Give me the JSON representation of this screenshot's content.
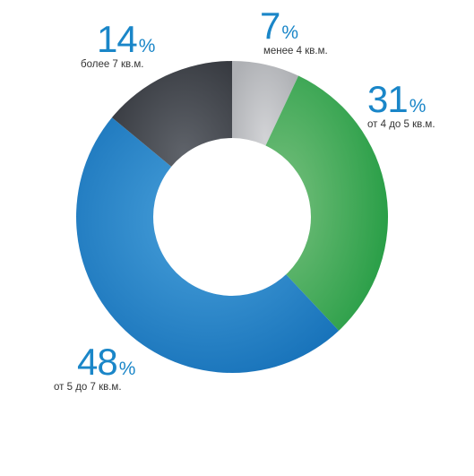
{
  "chart_data": {
    "type": "pie",
    "donut": true,
    "categories": [
      "менее 4 кв.м.",
      "от 4 до 5 кв.м.",
      "от 5 до 7 кв.м.",
      "более 7 кв.м."
    ],
    "values": [
      7,
      31,
      48,
      14
    ],
    "slices": [
      {
        "value": "7",
        "unit": "%",
        "label": "менее 4 кв.м.",
        "color": "#b4b6ba"
      },
      {
        "value": "31",
        "unit": "%",
        "label": "от 4 до 5 кв.м.",
        "color": "#3aa550"
      },
      {
        "value": "48",
        "unit": "%",
        "label": "от 5 до 7 кв.м.",
        "color": "#1e7fc6"
      },
      {
        "value": "14",
        "unit": "%",
        "label": "более 7 кв.м.",
        "color": "#464a50"
      }
    ],
    "colors": {
      "label_number": "#1a86c8",
      "label_text": "#333333"
    }
  }
}
